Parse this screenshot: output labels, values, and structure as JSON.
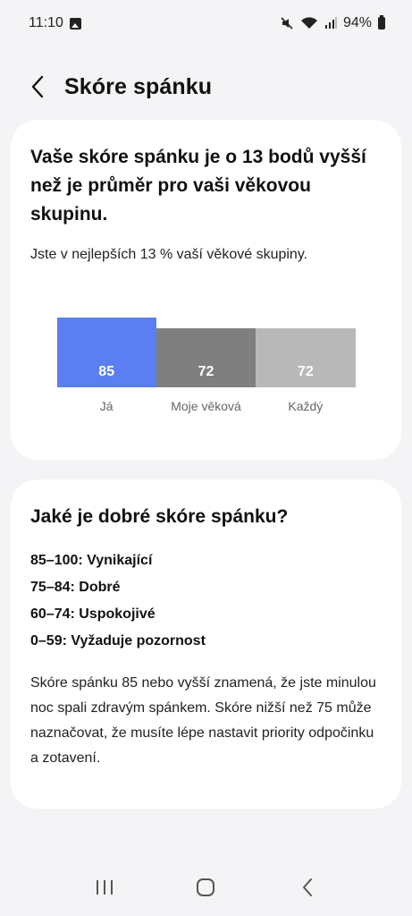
{
  "status_bar": {
    "time": "11:10",
    "battery": "94%"
  },
  "header": {
    "title": "Skóre spánku",
    "back_icon": "chevron-left-icon"
  },
  "comparison_card": {
    "headline": "Vaše skóre spánku je o 13 bodů vyšší než je průměr pro vaši věkovou skupinu.",
    "subtext": "Jste v nejlepších 13 % vaší věkové skupiny."
  },
  "chart_data": {
    "type": "bar",
    "categories": [
      "Já",
      "Moje věková",
      "Každý"
    ],
    "values": [
      85,
      72,
      72
    ],
    "colors": [
      "#5b7ff0",
      "#7f7f7f",
      "#b8b8b8"
    ],
    "ylim": [
      0,
      100
    ],
    "title": "",
    "xlabel": "",
    "ylabel": ""
  },
  "info_card": {
    "title": "Jaké je dobré skóre spánku?",
    "ranges": [
      "85–100: Vynikající",
      "75–84: Dobré",
      "60–74: Uspokojivé",
      "0–59: Vyžaduje pozornost"
    ],
    "paragraph": "Skóre spánku 85 nebo vyšší znamená, že jste minulou noc spali zdravým spánkem. Skóre nižší než 75 může naznačovat, že musíte lépe nastavit priority odpočinku a zotavení."
  },
  "nav": {
    "recents_icon": "recents-icon",
    "home_icon": "home-icon",
    "back_icon": "back-icon"
  }
}
